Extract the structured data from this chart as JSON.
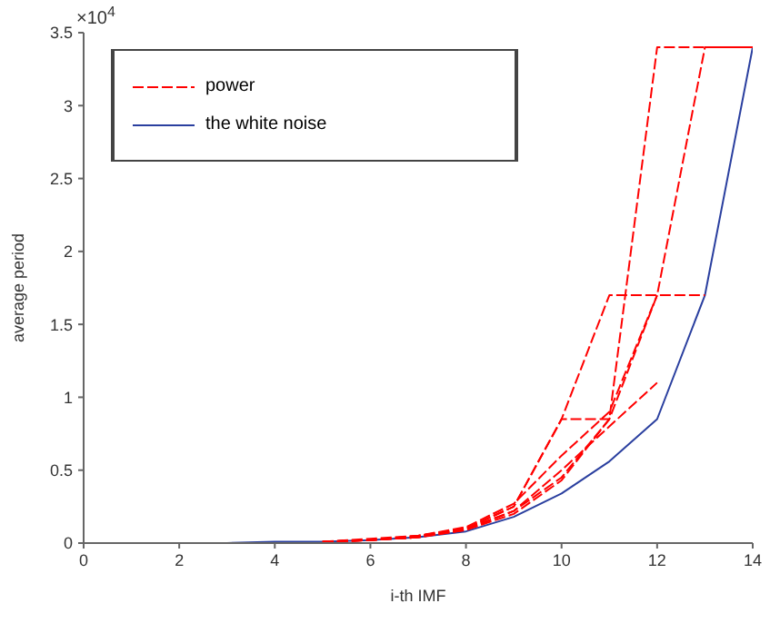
{
  "chart_data": {
    "type": "line",
    "xlabel": "i-th IMF",
    "ylabel": "average period",
    "annotations": [
      "×10$^{4}$"
    ],
    "xlim": [
      0,
      14
    ],
    "xticks": [
      0,
      2,
      4,
      6,
      8,
      10,
      12,
      14
    ],
    "ylim": [
      0,
      3.5
    ],
    "yticks": [
      0,
      0.5,
      1,
      1.5,
      2,
      2.5,
      3,
      3.5
    ],
    "grid": false,
    "legend": "top left",
    "marker": "none",
    "series": [
      {
        "name": "power",
        "color": "#ff0000",
        "line_style": "dashed",
        "x": [
          5,
          6,
          7,
          8,
          9,
          10,
          11,
          12,
          13,
          14
        ],
        "values": [
          0.01,
          0.02,
          0.04,
          0.09,
          0.2,
          0.43,
          0.85,
          3.4,
          3.4,
          3.4
        ]
      },
      {
        "color": "#ff0000",
        "line_style": "dashed",
        "x": [
          5,
          6,
          7,
          8,
          9,
          10,
          11,
          12,
          13,
          14
        ],
        "values": [
          0.01,
          0.02,
          0.04,
          0.09,
          0.22,
          0.45,
          0.85,
          1.7,
          3.4,
          3.4
        ]
      },
      {
        "color": "#ff0000",
        "line_style": "dashed",
        "x": [
          5,
          6,
          7,
          8,
          9,
          10,
          11,
          12,
          13
        ],
        "values": [
          0.01,
          0.02,
          0.05,
          0.1,
          0.25,
          0.85,
          1.7,
          1.7,
          1.7
        ]
      },
      {
        "color": "#ff0000",
        "line_style": "dashed",
        "x": [
          5,
          6,
          7,
          8,
          9,
          10,
          11
        ],
        "values": [
          0.01,
          0.02,
          0.05,
          0.1,
          0.25,
          0.85,
          0.85
        ]
      },
      {
        "color": "#ff0000",
        "line_style": "dashed",
        "x": [
          5,
          6,
          7,
          8,
          9,
          10,
          11,
          12
        ],
        "values": [
          0.01,
          0.02,
          0.04,
          0.1,
          0.22,
          0.5,
          0.8,
          1.1
        ]
      },
      {
        "color": "#ff0000",
        "line_style": "dashed",
        "x": [
          5,
          6,
          7,
          8,
          9,
          10,
          11,
          12
        ],
        "values": [
          0.01,
          0.03,
          0.05,
          0.11,
          0.27,
          0.6,
          0.9,
          1.7
        ]
      },
      {
        "name": "the white noise",
        "color": "#2a3f9f",
        "line_style": "solid",
        "x": [
          3,
          4,
          5,
          6,
          7,
          8,
          9,
          10,
          11,
          12,
          13,
          14
        ],
        "values": [
          0,
          0.01,
          0.01,
          0.02,
          0.04,
          0.08,
          0.18,
          0.34,
          0.56,
          0.85,
          1.7,
          3.4
        ]
      }
    ]
  }
}
